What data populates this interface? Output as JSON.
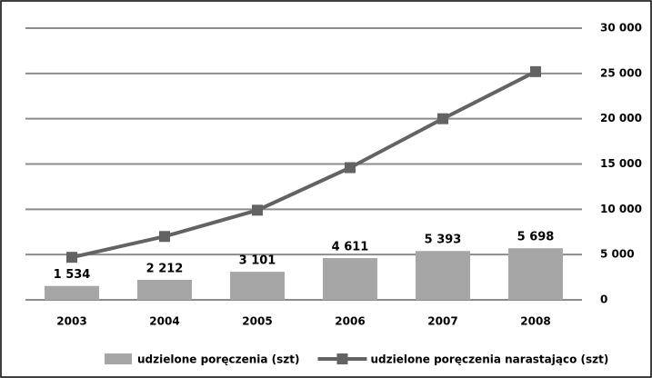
{
  "chart_data": {
    "type": "bar-line",
    "categories": [
      "2003",
      "2004",
      "2005",
      "2006",
      "2007",
      "2008"
    ],
    "series": [
      {
        "name": "udzielone poręczenia (szt)",
        "type": "bar",
        "color": "#a6a6a6",
        "axis": "y2",
        "values": [
          1534,
          2212,
          3101,
          4611,
          5393,
          5698
        ],
        "value_labels": [
          "1 534",
          "2 212",
          "3 101",
          "4 611",
          "5 393",
          "5 698"
        ]
      },
      {
        "name": "udzielone poręczenia narastająco (szt)",
        "type": "line",
        "color": "#636363",
        "axis": "y2",
        "values": [
          4700,
          7000,
          9900,
          14600,
          20000,
          25200
        ]
      }
    ],
    "y2lim": [
      0,
      30000
    ],
    "y2ticks": [
      0,
      {
        "value": 5000,
        "label": "5 000"
      },
      {
        "value": 10000,
        "label": "10 000"
      },
      {
        "value": 15000,
        "label": "15 000"
      },
      {
        "value": 20000,
        "label": "20 000"
      },
      {
        "value": 25000,
        "label": "25 000"
      },
      {
        "value": 30000,
        "label": "30 000"
      }
    ],
    "grid": true,
    "legend": "bottom"
  }
}
